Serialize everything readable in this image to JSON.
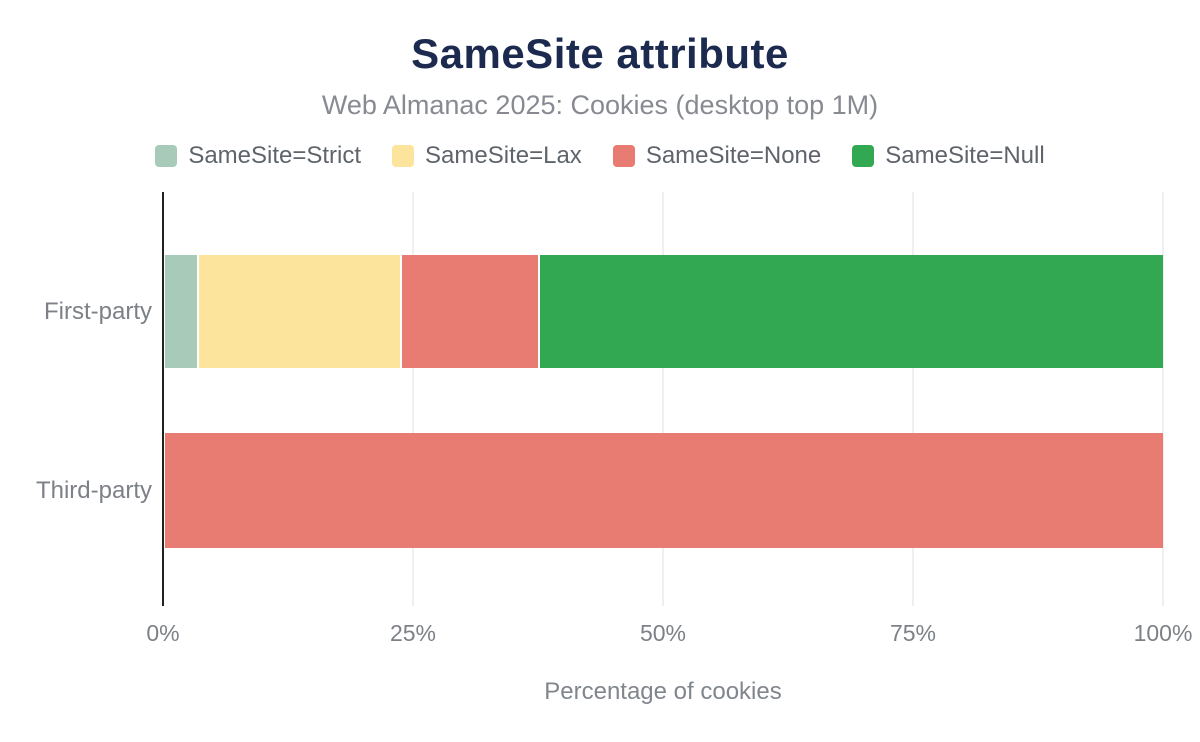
{
  "header": {
    "title": "SameSite attribute",
    "subtitle": "Web Almanac 2025: Cookies (desktop top 1M)"
  },
  "colors": {
    "title_text": "#1b2a4e",
    "subtitle_text": "#878b91",
    "legend_text": "#5f646b",
    "axis_text": "#7d8187",
    "gridline": "#efefef",
    "axis_line": "#212121",
    "background": "#ffffff",
    "samesite_strict": "#a8cab8",
    "samesite_lax": "#fde49c",
    "samesite_none": "#e87c72",
    "samesite_null": "#33a852"
  },
  "chart_data": {
    "type": "bar",
    "orientation": "horizontal",
    "stacked": true,
    "title": "SameSite attribute",
    "subtitle": "Web Almanac 2025: Cookies (desktop top 1M)",
    "xlabel": "Percentage of cookies",
    "ylabel": "",
    "categories": [
      "First-party",
      "Third-party"
    ],
    "series": [
      {
        "name": "SameSite=Strict",
        "color": "#a8cab8",
        "values": [
          3.2,
          0
        ]
      },
      {
        "name": "SameSite=Lax",
        "color": "#fde49c",
        "values": [
          20.3,
          0
        ]
      },
      {
        "name": "SameSite=None",
        "color": "#e87c72",
        "values": [
          13.9,
          100
        ]
      },
      {
        "name": "SameSite=Null",
        "color": "#33a852",
        "values": [
          62.6,
          0
        ]
      }
    ],
    "xlim": [
      0,
      100
    ],
    "x_ticks": [
      "0%",
      "25%",
      "50%",
      "75%",
      "100%"
    ],
    "grid": true,
    "legend_position": "top"
  }
}
